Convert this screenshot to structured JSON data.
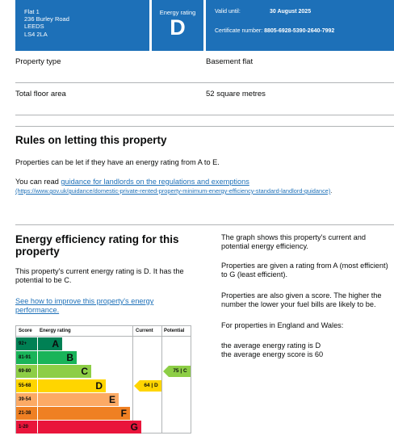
{
  "header": {
    "address_lines": [
      "Flat 1",
      "236 Burley Road",
      "LEEDS",
      "LS4 2LA"
    ],
    "energy_rating_label": "Energy rating",
    "energy_rating": "D",
    "valid_until_label": "Valid until:",
    "valid_until": "30 August 2025",
    "certificate_label": "Certificate number:",
    "certificate_number": "8805-6928-5390-2640-7992"
  },
  "summary": [
    {
      "label": "Property type",
      "value": "Basement flat"
    },
    {
      "label": "Total floor area",
      "value": "52 square metres"
    }
  ],
  "rules": {
    "heading": "Rules on letting this property",
    "para1": "Properties can be let if they have an energy rating from A to E.",
    "para2_prefix": "You can read ",
    "link_text": "guidance for landlords on the regulations and exemptions",
    "link_url": "(https://www.gov.uk/guidance/domestic-private-rented-property-minimum-energy-efficiency-standard-landlord-guidance)",
    "suffix": "."
  },
  "efficiency": {
    "heading": "Energy efficiency rating for this property",
    "para1": "This property's current energy rating is D. It has the potential to be C.",
    "link_text": "See how to improve this property's energy performance.",
    "right_paras": [
      "The graph shows this property's current and potential energy efficiency.",
      "Properties are given a rating from A (most efficient) to G (least efficient).",
      "Properties are also given a score. The higher the number the lower your fuel bills are likely to be.",
      "For properties in England and Wales:",
      "the average energy rating is D\nthe average energy score is 60"
    ]
  },
  "chart_data": {
    "type": "bar",
    "columns": [
      "Score",
      "Energy rating",
      "Current",
      "Potential"
    ],
    "bands": [
      {
        "score": "92+",
        "letter": "A",
        "color": "#008054"
      },
      {
        "score": "81-91",
        "letter": "B",
        "color": "#19b459"
      },
      {
        "score": "69-80",
        "letter": "C",
        "color": "#8dce46"
      },
      {
        "score": "55-68",
        "letter": "D",
        "color": "#ffd500"
      },
      {
        "score": "39-54",
        "letter": "E",
        "color": "#fcaa65"
      },
      {
        "score": "21-38",
        "letter": "F",
        "color": "#ef8023"
      },
      {
        "score": "1-20",
        "letter": "G",
        "color": "#e9153b"
      }
    ],
    "current": {
      "score": 64,
      "letter": "D",
      "label": "64 | D",
      "color": "#ffd500"
    },
    "potential": {
      "score": 75,
      "letter": "C",
      "label": "75 | C",
      "color": "#8dce46"
    }
  }
}
